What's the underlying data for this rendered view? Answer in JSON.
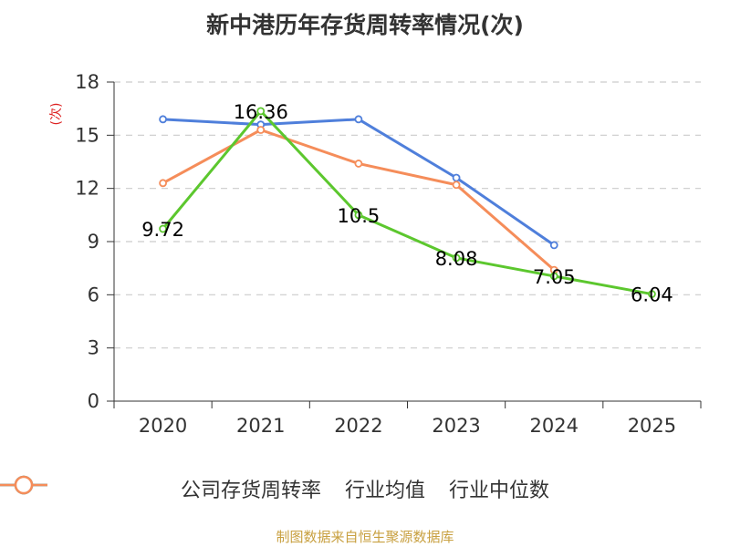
{
  "chart_data": {
    "type": "line",
    "title": "新中港历年存货周转率情况(次)",
    "ylabel": "(次)",
    "categories": [
      "2020",
      "2021",
      "2022",
      "2023",
      "2024",
      "2025"
    ],
    "ylim": [
      0,
      18
    ],
    "yticks": [
      0,
      3,
      6,
      9,
      12,
      15,
      18
    ],
    "grid": true,
    "legend_position": "bottom",
    "series": [
      {
        "name": "公司存货周转率",
        "color": "#5cc72e",
        "values": [
          9.72,
          16.36,
          10.5,
          8.08,
          7.05,
          6.04
        ],
        "labels": [
          "9.72",
          "16.36",
          "10.5",
          "8.08",
          "7.05",
          "6.04"
        ]
      },
      {
        "name": "行业均值",
        "color": "#4f7fdb",
        "values": [
          15.9,
          15.6,
          15.9,
          12.6,
          8.8,
          null
        ]
      },
      {
        "name": "行业中位数",
        "color": "#f58d5a",
        "values": [
          12.3,
          15.3,
          13.4,
          12.2,
          7.4,
          null
        ]
      }
    ]
  },
  "source": "制图数据来自恒生聚源数据库"
}
